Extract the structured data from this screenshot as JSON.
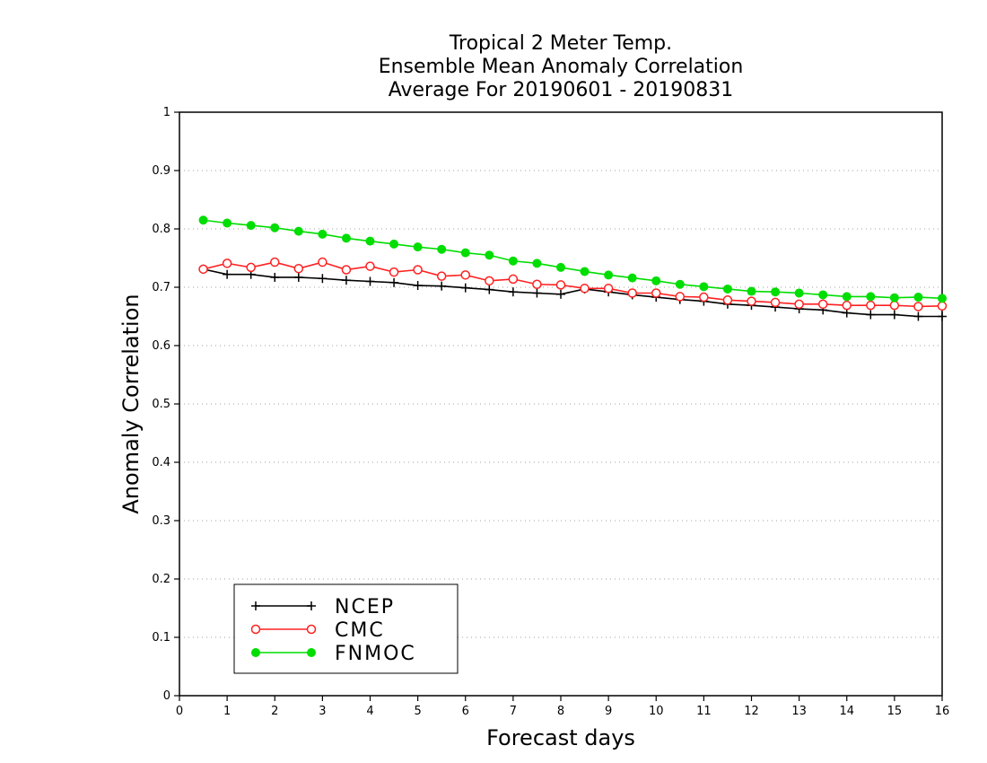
{
  "chart_data": {
    "type": "line",
    "title": [
      "Tropical 2 Meter Temp.",
      "Ensemble Mean Anomaly Correlation",
      "Average For 20190601 - 20190831"
    ],
    "xlabel": "Forecast days",
    "ylabel": "Anomaly Correlation",
    "xlim": [
      0,
      16
    ],
    "ylim": [
      0,
      1
    ],
    "xticks": [
      0,
      1,
      2,
      3,
      4,
      5,
      6,
      7,
      8,
      9,
      10,
      11,
      12,
      13,
      14,
      15,
      16
    ],
    "xtick_labels": [
      "0",
      "1",
      "2",
      "3",
      "4",
      "5",
      "6",
      "7",
      "8",
      "9",
      "10",
      "11",
      "12",
      "13",
      "14",
      "15",
      "16"
    ],
    "yticks": [
      0,
      0.1,
      0.2,
      0.3,
      0.4,
      0.5,
      0.6,
      0.7,
      0.8,
      0.9,
      1
    ],
    "ytick_labels": [
      "0",
      "0.1",
      "0.2",
      "0.3",
      "0.4",
      "0.5",
      "0.6",
      "0.7",
      "0.8",
      "0.9",
      "1"
    ],
    "grid": "horizontal dotted",
    "legend_position": "bottom-left",
    "x": [
      0.5,
      1,
      1.5,
      2,
      2.5,
      3,
      3.5,
      4,
      4.5,
      5,
      5.5,
      6,
      6.5,
      7,
      7.5,
      8,
      8.5,
      9,
      9.5,
      10,
      10.5,
      11,
      11.5,
      12,
      12.5,
      13,
      13.5,
      14,
      14.5,
      15,
      15.5,
      16
    ],
    "series": [
      {
        "name": "NCEP",
        "color": "#000000",
        "marker": "plus",
        "values": [
          0.731,
          0.722,
          0.722,
          0.717,
          0.717,
          0.715,
          0.712,
          0.71,
          0.708,
          0.703,
          0.702,
          0.699,
          0.696,
          0.692,
          0.69,
          0.688,
          0.697,
          0.692,
          0.687,
          0.683,
          0.679,
          0.676,
          0.671,
          0.669,
          0.666,
          0.663,
          0.661,
          0.656,
          0.653,
          0.653,
          0.65,
          0.65
        ]
      },
      {
        "name": "CMC",
        "color": "#ff2020",
        "marker": "open-circle",
        "values": [
          0.731,
          0.741,
          0.734,
          0.743,
          0.732,
          0.743,
          0.73,
          0.736,
          0.726,
          0.73,
          0.719,
          0.721,
          0.711,
          0.714,
          0.705,
          0.704,
          0.698,
          0.698,
          0.69,
          0.69,
          0.684,
          0.683,
          0.678,
          0.676,
          0.674,
          0.671,
          0.671,
          0.669,
          0.669,
          0.669,
          0.667,
          0.668
        ]
      },
      {
        "name": "FNMOC",
        "color": "#00dd00",
        "marker": "filled-circle",
        "values": [
          0.815,
          0.81,
          0.806,
          0.802,
          0.796,
          0.791,
          0.784,
          0.779,
          0.774,
          0.769,
          0.765,
          0.759,
          0.755,
          0.745,
          0.741,
          0.734,
          0.727,
          0.721,
          0.716,
          0.711,
          0.705,
          0.701,
          0.697,
          0.693,
          0.692,
          0.69,
          0.687,
          0.684,
          0.684,
          0.682,
          0.683,
          0.681
        ]
      }
    ]
  }
}
